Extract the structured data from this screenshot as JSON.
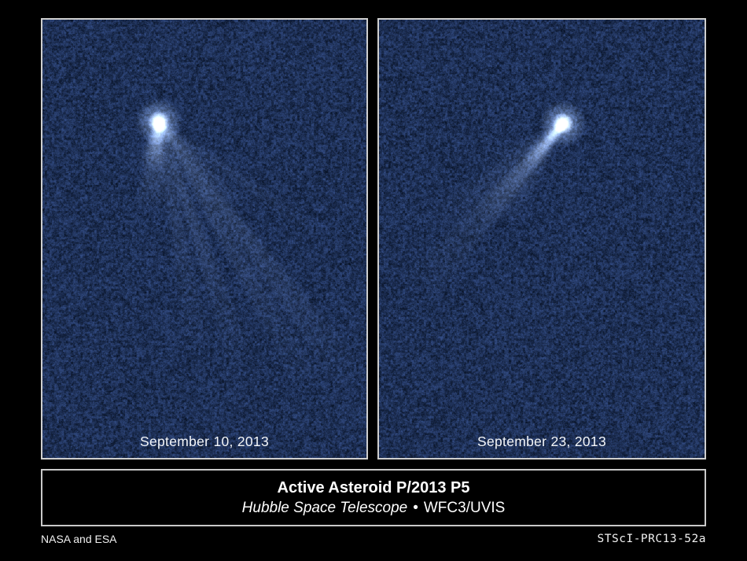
{
  "panels": [
    {
      "date_label": "September 10, 2013"
    },
    {
      "date_label": "September 23, 2013"
    }
  ],
  "caption": {
    "title": "Active Asteroid P/2013 P5",
    "subtitle_italic": "Hubble Space Telescope",
    "subtitle_separator": "•",
    "subtitle_instrument": "WFC3/UVIS"
  },
  "footer": {
    "credit": "NASA and ESA",
    "release_id": "STScI-PRC13-52a"
  },
  "colors": {
    "page_background": "#000000",
    "panel_border": "#cfcfcf",
    "space_base": "#0e1c38",
    "space_speckle_low": "#0a1228",
    "space_speckle_high": "#3a5a8c",
    "comet_tail": "#cfe0fa",
    "comet_nucleus": "#ffffff",
    "text": "#ffffff"
  }
}
